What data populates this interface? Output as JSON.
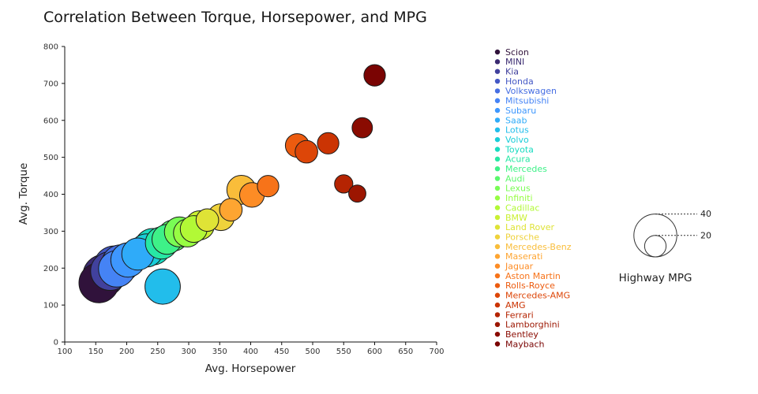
{
  "title": "Correlation Between Torque, Horsepower, and MPG",
  "chart_data": {
    "type": "scatter",
    "subtype": "bubble",
    "title": "Correlation Between Torque, Horsepower, and MPG",
    "xlabel": "Avg. Horsepower",
    "ylabel": "Avg. Torque",
    "xlim": [
      100,
      700
    ],
    "ylim": [
      0,
      800
    ],
    "xticks": [
      100,
      150,
      200,
      250,
      300,
      350,
      400,
      450,
      500,
      550,
      600,
      650,
      700
    ],
    "yticks": [
      0,
      100,
      200,
      300,
      400,
      500,
      600,
      700,
      800
    ],
    "grid": false,
    "legend_position": "right",
    "size_legend": {
      "title": "Highway MPG",
      "values": [
        40,
        20
      ]
    },
    "series": [
      {
        "name": "Scion",
        "color": "#30123b",
        "avg_horsepower": 155,
        "avg_torque": 160,
        "highway_mpg": 37
      },
      {
        "name": "MINI",
        "color": "#3a2a70",
        "avg_horsepower": 163,
        "avg_torque": 180,
        "highway_mpg": 39
      },
      {
        "name": "Kia",
        "color": "#41419d",
        "avg_horsepower": 173,
        "avg_torque": 192,
        "highway_mpg": 36
      },
      {
        "name": "Honda",
        "color": "#4458c5",
        "avg_horsepower": 180,
        "avg_torque": 205,
        "highway_mpg": 38
      },
      {
        "name": "Volkswagen",
        "color": "#466ee2",
        "avg_horsepower": 190,
        "avg_torque": 212,
        "highway_mpg": 35
      },
      {
        "name": "Mitsubishi",
        "color": "#4583f5",
        "avg_horsepower": 184,
        "avg_torque": 198,
        "highway_mpg": 34
      },
      {
        "name": "Subaru",
        "color": "#3e97fe",
        "avg_horsepower": 202,
        "avg_torque": 222,
        "highway_mpg": 32
      },
      {
        "name": "Saab",
        "color": "#2fabf9",
        "avg_horsepower": 218,
        "avg_torque": 238,
        "highway_mpg": 30
      },
      {
        "name": "Lotus",
        "color": "#22bdeb",
        "avg_horsepower": 258,
        "avg_torque": 150,
        "highway_mpg": 33
      },
      {
        "name": "Volvo",
        "color": "#19cdd8",
        "avg_horsepower": 232,
        "avg_torque": 248,
        "highway_mpg": 31
      },
      {
        "name": "Toyota",
        "color": "#18dbc0",
        "avg_horsepower": 242,
        "avg_torque": 258,
        "highway_mpg": 34
      },
      {
        "name": "Acura",
        "color": "#27e7a5",
        "avg_horsepower": 256,
        "avg_torque": 268,
        "highway_mpg": 30
      },
      {
        "name": "Mercedes",
        "color": "#3ef188",
        "avg_horsepower": 265,
        "avg_torque": 278,
        "highway_mpg": 28
      },
      {
        "name": "Audi",
        "color": "#5af86c",
        "avg_horsepower": 275,
        "avg_torque": 288,
        "highway_mpg": 29
      },
      {
        "name": "Lexus",
        "color": "#79fc55",
        "avg_horsepower": 285,
        "avg_torque": 298,
        "highway_mpg": 28
      },
      {
        "name": "Infiniti",
        "color": "#97fd43",
        "avg_horsepower": 298,
        "avg_torque": 295,
        "highway_mpg": 26
      },
      {
        "name": "Cadillac",
        "color": "#b2f936",
        "avg_horsepower": 308,
        "avg_torque": 306,
        "highway_mpg": 25
      },
      {
        "name": "BMW",
        "color": "#caf032",
        "avg_horsepower": 318,
        "avg_torque": 316,
        "highway_mpg": 27
      },
      {
        "name": "Land Rover",
        "color": "#dfe336",
        "avg_horsepower": 330,
        "avg_torque": 330,
        "highway_mpg": 21
      },
      {
        "name": "Porsche",
        "color": "#efd23b",
        "avg_horsepower": 352,
        "avg_torque": 338,
        "highway_mpg": 25
      },
      {
        "name": "Mercedes-Benz",
        "color": "#f9bd3a",
        "avg_horsepower": 385,
        "avg_torque": 412,
        "highway_mpg": 27
      },
      {
        "name": "Maserati",
        "color": "#fea531",
        "avg_horsepower": 368,
        "avg_torque": 358,
        "highway_mpg": 21
      },
      {
        "name": "Jaguar",
        "color": "#fd8c25",
        "avg_horsepower": 402,
        "avg_torque": 398,
        "highway_mpg": 23
      },
      {
        "name": "Aston Martin",
        "color": "#f77319",
        "avg_horsepower": 428,
        "avg_torque": 422,
        "highway_mpg": 20
      },
      {
        "name": "Rolls-Royce",
        "color": "#ec5b0f",
        "avg_horsepower": 475,
        "avg_torque": 532,
        "highway_mpg": 22
      },
      {
        "name": "Mercedes-AMG",
        "color": "#dd4608",
        "avg_horsepower": 490,
        "avg_torque": 515,
        "highway_mpg": 21
      },
      {
        "name": "AMG",
        "color": "#cb3403",
        "avg_horsepower": 525,
        "avg_torque": 538,
        "highway_mpg": 20
      },
      {
        "name": "Ferrari",
        "color": "#b52402",
        "avg_horsepower": 550,
        "avg_torque": 428,
        "highway_mpg": 17
      },
      {
        "name": "Lamborghini",
        "color": "#9c1601",
        "avg_horsepower": 572,
        "avg_torque": 402,
        "highway_mpg": 16
      },
      {
        "name": "Bentley",
        "color": "#8a0b01",
        "avg_horsepower": 580,
        "avg_torque": 580,
        "highway_mpg": 19
      },
      {
        "name": "Maybach",
        "color": "#7a0403",
        "avg_horsepower": 600,
        "avg_torque": 722,
        "highway_mpg": 20
      }
    ]
  }
}
